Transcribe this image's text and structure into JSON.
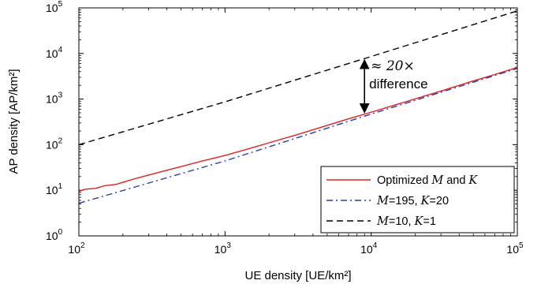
{
  "chart_data": {
    "type": "line",
    "xlabel": "UE density [UE/km²]",
    "ylabel": "AP density [AP/km²]",
    "xscale": "log",
    "yscale": "log",
    "xlim": [
      100,
      100000
    ],
    "ylim": [
      1,
      100000
    ],
    "grid": false,
    "legend_position": "bottom-right",
    "x_ticks": [
      {
        "base": "10",
        "exp": "2",
        "value": 100
      },
      {
        "base": "10",
        "exp": "3",
        "value": 1000
      },
      {
        "base": "10",
        "exp": "4",
        "value": 10000
      },
      {
        "base": "10",
        "exp": "5",
        "value": 100000
      }
    ],
    "y_ticks": [
      {
        "base": "10",
        "exp": "0",
        "value": 1
      },
      {
        "base": "10",
        "exp": "1",
        "value": 10
      },
      {
        "base": "10",
        "exp": "2",
        "value": 100
      },
      {
        "base": "10",
        "exp": "3",
        "value": 1000
      },
      {
        "base": "10",
        "exp": "4",
        "value": 10000
      },
      {
        "base": "10",
        "exp": "5",
        "value": 100000
      }
    ],
    "series": [
      {
        "legend_parts": [
          {
            "t": "Optimized ",
            "math": false
          },
          {
            "t": "M",
            "math": true
          },
          {
            "t": " and ",
            "math": false
          },
          {
            "t": "K",
            "math": true
          }
        ],
        "color": "#e02020",
        "dash": "solid",
        "x": [
          100,
          110,
          120,
          130,
          150,
          180,
          200,
          250,
          300,
          400,
          500,
          700,
          1000,
          1500,
          2000,
          3000,
          5000,
          7000,
          10000,
          20000,
          30000,
          50000,
          70000,
          100000
        ],
        "y": [
          9.5,
          10.5,
          10.8,
          11.0,
          12.6,
          13.5,
          15.0,
          18.5,
          21.5,
          27.5,
          33.0,
          44.0,
          58.0,
          84.0,
          110.0,
          160.0,
          265.0,
          370.0,
          515.0,
          1010.0,
          1500.0,
          2500.0,
          3450.0,
          4950.0
        ]
      },
      {
        "legend_parts": [
          {
            "t": "M",
            "math": true
          },
          {
            "t": "=195, ",
            "math": false
          },
          {
            "t": "K",
            "math": true
          },
          {
            "t": "=20",
            "math": false
          }
        ],
        "color": "#2b3fa0",
        "dash": "dashdot",
        "x": [
          100,
          1000,
          10000,
          100000
        ],
        "y": [
          5.2,
          44.0,
          470.0,
          4700.0
        ]
      },
      {
        "legend_parts": [
          {
            "t": "M",
            "math": true
          },
          {
            "t": "=10, ",
            "math": false
          },
          {
            "t": "K",
            "math": true
          },
          {
            "t": "=1",
            "math": false
          }
        ],
        "color": "#000000",
        "dash": "dashed",
        "x": [
          100,
          1000,
          10000,
          100000
        ],
        "y": [
          100,
          870,
          8600,
          86000
        ]
      }
    ],
    "annotations": [
      {
        "type": "double-arrow",
        "x": 9000,
        "y_from": 470,
        "y_to": 7800,
        "label_parts": [
          {
            "t": "≈ 20×",
            "math": true
          }
        ],
        "label_line2": "difference"
      }
    ]
  }
}
